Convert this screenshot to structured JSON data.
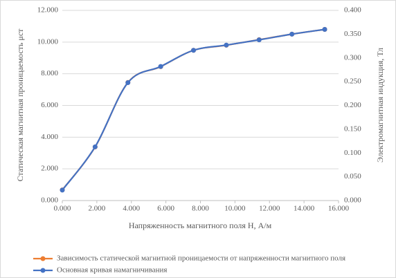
{
  "chart_data": {
    "type": "line",
    "x": [
      0.0,
      1.9,
      3.8,
      5.7,
      7.6,
      9.5,
      11.4,
      13.3,
      15.2
    ],
    "series": [
      {
        "name": "Зависимость статической магнитной проницаемости от напряженности магнитного поля",
        "color": "#ed7d31",
        "values": [
          0.67,
          3.38,
          7.45,
          8.45,
          9.48,
          9.8,
          10.15,
          10.5,
          10.8
        ]
      },
      {
        "name": "Основная кривая намагничивания",
        "color": "#4472c4",
        "axis": "y2",
        "values": [
          0.022,
          0.113,
          0.248,
          0.282,
          0.316,
          0.327,
          0.338,
          0.35,
          0.36
        ]
      }
    ],
    "xlabel": "Напряженность магнитного поля H, А/м",
    "ylabel": "Статическая магнитная проницаемость μст",
    "y2label": "Электромагнитная индукция, Тл",
    "xlim": [
      0,
      16
    ],
    "xticks": [
      {
        "value": 0,
        "label": "0.000"
      },
      {
        "value": 2,
        "label": "2.000"
      },
      {
        "value": 4,
        "label": "4.000"
      },
      {
        "value": 6,
        "label": "6.000"
      },
      {
        "value": 8,
        "label": "8.000"
      },
      {
        "value": 10,
        "label": "10.000"
      },
      {
        "value": 12,
        "label": "12.000"
      },
      {
        "value": 14,
        "label": "14.000"
      },
      {
        "value": 16,
        "label": "16.000"
      }
    ],
    "ylim": [
      0,
      12
    ],
    "yticks": [
      {
        "value": 0,
        "label": "0.000"
      },
      {
        "value": 2,
        "label": "2.000"
      },
      {
        "value": 4,
        "label": "4.000"
      },
      {
        "value": 6,
        "label": "6.000"
      },
      {
        "value": 8,
        "label": "8.000"
      },
      {
        "value": 10,
        "label": "10.000"
      },
      {
        "value": 12,
        "label": "12.000"
      }
    ],
    "y2lim": [
      0,
      0.4
    ],
    "y2ticks": [
      {
        "value": 0,
        "label": "0.000"
      },
      {
        "value": 0.05,
        "label": "0.050"
      },
      {
        "value": 0.1,
        "label": "0.100"
      },
      {
        "value": 0.15,
        "label": "0.150"
      },
      {
        "value": 0.2,
        "label": "0.200"
      },
      {
        "value": 0.25,
        "label": "0.250"
      },
      {
        "value": 0.3,
        "label": "0.300"
      },
      {
        "value": 0.35,
        "label": "0.350"
      },
      {
        "value": 0.4,
        "label": "0.400"
      }
    ],
    "grid": true,
    "legend": "bottom"
  }
}
